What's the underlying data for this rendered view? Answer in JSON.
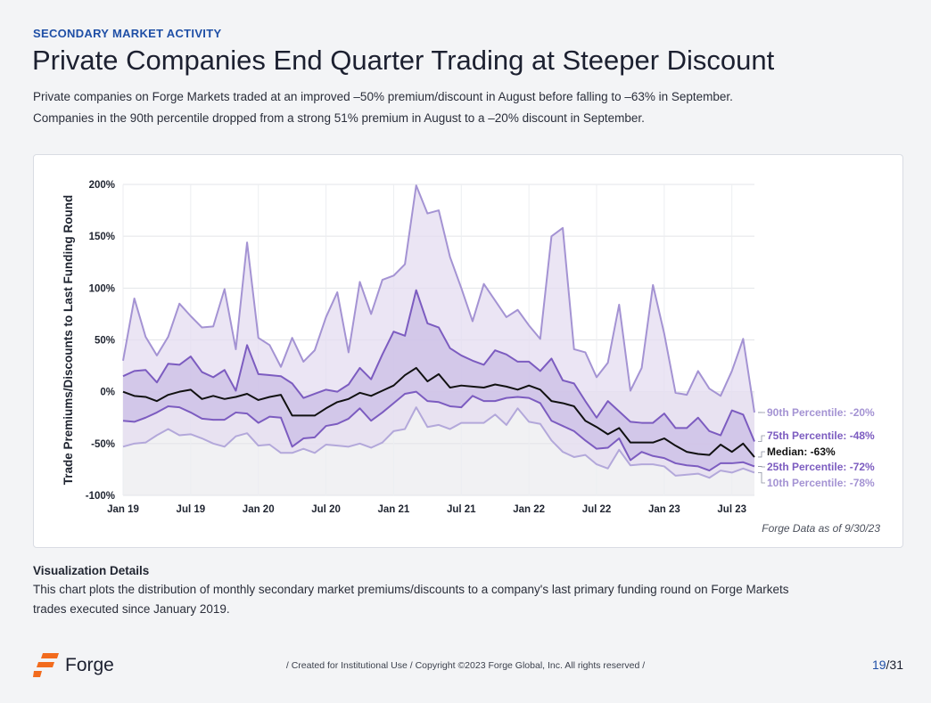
{
  "header": {
    "kicker": "SECONDARY MARKET ACTIVITY",
    "title": "Private Companies End Quarter Trading at Steeper Discount",
    "subtitle": "Private companies on Forge Markets traded at an improved –50% premium/discount in August before falling to –63% in September. Companies in the 90th percentile dropped from a strong 51% premium in August to a –20% discount in September."
  },
  "colors": {
    "brand_blue": "#1f4fa6",
    "brand_orange": "#f26b1d",
    "p10_p90_band": "#e4dcf0",
    "p25_p75_band": "#cbbde6",
    "p90_line": "#a493d3",
    "p75_line": "#7c5cc0",
    "median_line": "#111111",
    "p25_line": "#7c5cc0",
    "p10_line": "#b3a8da",
    "below_zero_shade": "#f1f1f3"
  },
  "chart_data": {
    "type": "area",
    "ylabel": "Trade Premiums/Discounts to Last Funding Round",
    "xlabel": "",
    "ylim": [
      -100,
      200
    ],
    "yticks": [
      -100,
      -50,
      0,
      50,
      100,
      150,
      200
    ],
    "ytick_labels": [
      "-100%",
      "-50%",
      "0%",
      "50%",
      "100%",
      "150%",
      "200%"
    ],
    "xtick_labels": [
      "Jan 19",
      "Jul 19",
      "Jan 20",
      "Jul 20",
      "Jan 21",
      "Jul 21",
      "Jan 22",
      "Jul 22",
      "Jan 23",
      "Jul 23"
    ],
    "xtick_positions": [
      0,
      6,
      12,
      18,
      24,
      30,
      36,
      42,
      48,
      54
    ],
    "grid": true,
    "x_range": [
      0,
      56
    ],
    "x_start": "Jan 2019",
    "x_end": "Sep 2023",
    "series": [
      {
        "name": "90th Percentile",
        "end_label": "90th Percentile: -20%",
        "values": [
          30,
          90,
          53,
          35,
          53,
          85,
          73,
          62,
          63,
          99,
          41,
          144,
          52,
          45,
          24,
          52,
          29,
          40,
          72,
          96,
          38,
          106,
          75,
          108,
          112,
          123,
          199,
          172,
          175,
          130,
          100,
          68,
          104,
          88,
          72,
          79,
          64,
          51,
          150,
          158,
          41,
          38,
          14,
          28,
          84,
          1,
          23,
          103,
          56,
          -1,
          -3,
          20,
          3,
          -4,
          20,
          51,
          -20
        ]
      },
      {
        "name": "75th Percentile",
        "end_label": "75th Percentile: -48%",
        "values": [
          15,
          20,
          21,
          9,
          27,
          26,
          34,
          19,
          14,
          21,
          1,
          45,
          17,
          16,
          15,
          8,
          -6,
          -2,
          2,
          0,
          7,
          23,
          12,
          36,
          58,
          54,
          98,
          66,
          62,
          42,
          35,
          30,
          26,
          40,
          36,
          29,
          29,
          20,
          32,
          11,
          8,
          -9,
          -25,
          -9,
          -19,
          -29,
          -30,
          -30,
          -21,
          -35,
          -35,
          -25,
          -38,
          -42,
          -18,
          -22,
          -48
        ]
      },
      {
        "name": "Median",
        "end_label": "Median: -63%",
        "values": [
          0,
          -4,
          -5,
          -9,
          -3,
          0,
          2,
          -7,
          -4,
          -7,
          -5,
          -2,
          -8,
          -5,
          -3,
          -23,
          -23,
          -23,
          -16,
          -10,
          -7,
          -1,
          -4,
          1,
          6,
          16,
          23,
          10,
          17,
          4,
          6,
          5,
          4,
          7,
          5,
          2,
          6,
          2,
          -9,
          -11,
          -14,
          -28,
          -34,
          -41,
          -35,
          -49,
          -49,
          -49,
          -45,
          -52,
          -58,
          -60,
          -61,
          -51,
          -58,
          -50,
          -63
        ]
      },
      {
        "name": "25th Percentile",
        "end_label": "25th Percentile: -72%",
        "values": [
          -28,
          -29,
          -25,
          -20,
          -14,
          -15,
          -20,
          -26,
          -27,
          -27,
          -20,
          -21,
          -30,
          -24,
          -25,
          -53,
          -45,
          -44,
          -33,
          -31,
          -26,
          -16,
          -28,
          -20,
          -11,
          -2,
          0,
          -9,
          -10,
          -14,
          -15,
          -4,
          -9,
          -9,
          -6,
          -5,
          -6,
          -11,
          -28,
          -33,
          -38,
          -47,
          -55,
          -54,
          -45,
          -66,
          -58,
          -62,
          -64,
          -69,
          -71,
          -72,
          -76,
          -69,
          -69,
          -68,
          -72
        ]
      },
      {
        "name": "10th Percentile",
        "end_label": "10th Percentile: -78%",
        "values": [
          -53,
          -50,
          -49,
          -42,
          -36,
          -42,
          -41,
          -45,
          -50,
          -53,
          -43,
          -40,
          -52,
          -51,
          -59,
          -59,
          -55,
          -59,
          -51,
          -52,
          -53,
          -50,
          -54,
          -49,
          -38,
          -36,
          -15,
          -34,
          -32,
          -36,
          -30,
          -30,
          -30,
          -22,
          -32,
          -16,
          -29,
          -31,
          -47,
          -58,
          -63,
          -61,
          -70,
          -74,
          -56,
          -71,
          -70,
          -70,
          -72,
          -81,
          -80,
          -79,
          -83,
          -76,
          -78,
          -74,
          -78
        ]
      }
    ]
  },
  "card": {
    "source_note": "Forge Data as of 9/30/23"
  },
  "details": {
    "heading": "Visualization Details",
    "text": "This chart plots the distribution of monthly secondary market premiums/discounts to a company's last primary funding round on Forge Markets trades executed since January 2019."
  },
  "footer": {
    "brand": "Forge",
    "copyright": "/ Created for Institutional Use / Copyright ©2023 Forge Global, Inc. All rights reserved /",
    "page_current": "19",
    "page_total": "/31"
  }
}
